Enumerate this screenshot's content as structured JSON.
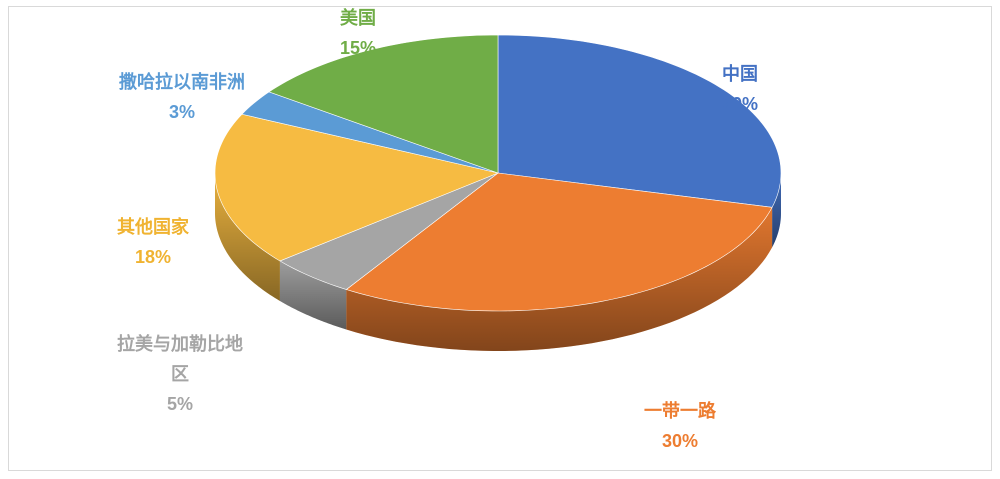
{
  "chart_data": {
    "type": "pie",
    "title": "",
    "categories": [
      "中国",
      "一带一路",
      "拉美与加勒比地区",
      "其他国家",
      "撒哈拉以南非洲",
      "美国"
    ],
    "values": [
      29,
      30,
      5,
      18,
      3,
      15
    ],
    "unit": "%",
    "colors": [
      "#4472C4",
      "#ED7D31",
      "#A5A5A5",
      "#F6BB42",
      "#5B9BD5",
      "#70AD47"
    ],
    "label_colors": [
      "#4472C4",
      "#ED7D31",
      "#A5A5A5",
      "#F0B331",
      "#5B9BD5",
      "#70AD47"
    ],
    "labels": [
      {
        "name_lines": [
          "中国"
        ],
        "pct": "29%"
      },
      {
        "name_lines": [
          "一带一路"
        ],
        "pct": "30%"
      },
      {
        "name_lines": [
          "拉美与加勒比地",
          "区"
        ],
        "pct": "5%"
      },
      {
        "name_lines": [
          "其他国家"
        ],
        "pct": "18%"
      },
      {
        "name_lines": [
          "撒哈拉以南非洲"
        ],
        "pct": "3%"
      },
      {
        "name_lines": [
          "美国"
        ],
        "pct": "15%"
      }
    ],
    "style": "3d-exploded-none",
    "legend": "none",
    "grid": false
  }
}
